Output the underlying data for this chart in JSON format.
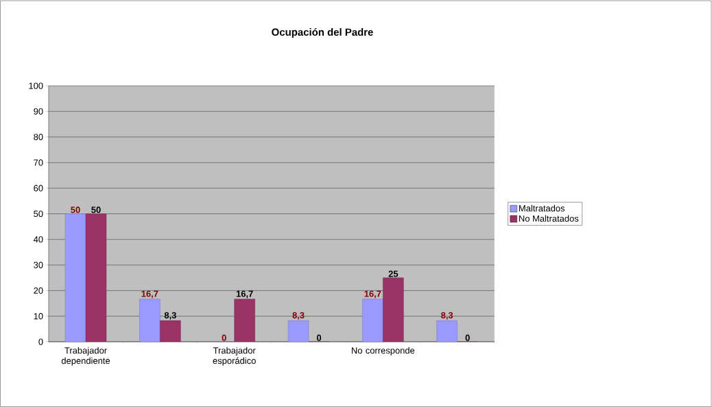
{
  "chart_data": {
    "type": "bar",
    "title": "Ocupación del Padre",
    "categories": [
      "Trabajador dependiente",
      null,
      "Trabajador esporádico",
      null,
      "No corresponde",
      null
    ],
    "series": [
      {
        "name": "Maltratados",
        "color": "#9999ff",
        "values": [
          50,
          16.7,
          0,
          8.3,
          16.7,
          8.3
        ],
        "value_labels": [
          "50",
          "16,7",
          "0",
          "8,3",
          "16,7",
          "8,3"
        ]
      },
      {
        "name": "No Maltratados",
        "color": "#993366",
        "values": [
          50,
          8.3,
          16.7,
          0,
          25,
          0
        ],
        "value_labels": [
          "50",
          "8,3",
          "16,7",
          "0",
          "25",
          "0"
        ]
      }
    ],
    "ylim": [
      0,
      100
    ],
    "yticks": [
      0,
      10,
      20,
      30,
      40,
      50,
      60,
      70,
      80,
      90,
      100
    ],
    "grid": "y",
    "legend": "right"
  }
}
